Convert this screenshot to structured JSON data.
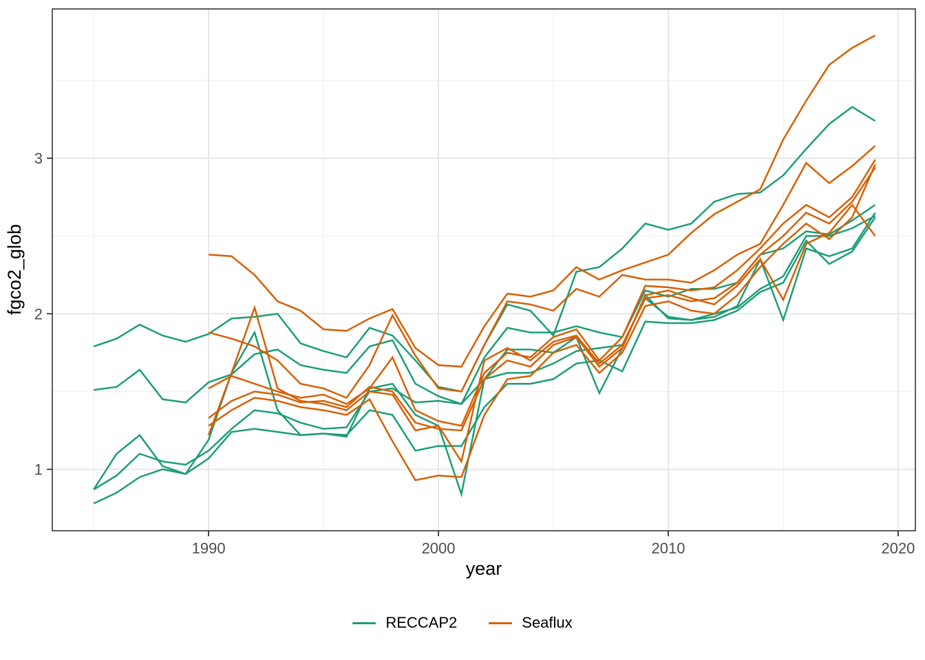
{
  "chart_data": {
    "type": "line",
    "title": "",
    "xlabel": "year",
    "ylabel": "fgco2_glob",
    "legend_position": "bottom",
    "legend_labels": {
      "reccap2": "RECCAP2",
      "seaflux": "Seaflux"
    },
    "colors": {
      "RECCAP2": "#1B9E77",
      "Seaflux": "#D95F02"
    },
    "xlim": [
      1983.2,
      2020.75
    ],
    "ylim": [
      0.605,
      3.96
    ],
    "x_ticks": {
      "values": [
        1990,
        2000,
        2010,
        2020
      ],
      "labels": [
        "1990",
        "2000",
        "2010",
        "2020"
      ]
    },
    "y_ticks": {
      "values": [
        1,
        2,
        3
      ],
      "labels": [
        "1",
        "2",
        "3"
      ]
    },
    "x_minor": [
      1985,
      1995,
      2005,
      2015
    ],
    "y_minor": [
      1.5,
      2.5,
      3.5
    ],
    "grid": true,
    "x": [
      1985,
      1986,
      1987,
      1988,
      1989,
      1990,
      1991,
      1992,
      1993,
      1994,
      1995,
      1996,
      1997,
      1998,
      1999,
      2000,
      2001,
      2002,
      2003,
      2004,
      2005,
      2006,
      2007,
      2008,
      2009,
      2010,
      2011,
      2012,
      2013,
      2014,
      2015,
      2016,
      2017,
      2018,
      2019
    ],
    "series": [
      {
        "id": "reccap2_1",
        "group": "RECCAP2",
        "values": [
          1.79,
          1.84,
          1.93,
          1.86,
          1.82,
          1.87,
          1.97,
          1.98,
          2.0,
          1.81,
          1.76,
          1.72,
          1.91,
          1.86,
          1.7,
          1.53,
          1.5,
          1.8,
          2.06,
          2.02,
          1.86,
          2.27,
          2.3,
          2.42,
          2.58,
          2.54,
          2.58,
          2.72,
          2.77,
          2.78,
          2.89,
          3.06,
          3.22,
          3.33,
          3.24
        ]
      },
      {
        "id": "reccap2_2",
        "group": "RECCAP2",
        "values": [
          1.51,
          1.53,
          1.64,
          1.45,
          1.43,
          1.56,
          1.61,
          1.74,
          1.77,
          1.67,
          1.64,
          1.62,
          1.79,
          1.83,
          1.55,
          1.47,
          1.42,
          1.72,
          1.91,
          1.88,
          1.88,
          1.92,
          1.88,
          1.85,
          2.15,
          2.11,
          2.16,
          2.16,
          2.2,
          2.38,
          2.42,
          2.53,
          2.51,
          2.6,
          2.7
        ]
      },
      {
        "id": "reccap2_3",
        "group": "RECCAP2",
        "values": [
          0.87,
          1.1,
          1.22,
          1.02,
          0.97,
          1.19,
          1.62,
          1.88,
          1.38,
          1.22,
          1.23,
          1.21,
          1.52,
          1.55,
          1.35,
          1.28,
          0.84,
          1.58,
          1.77,
          1.77,
          1.75,
          1.85,
          1.49,
          1.78,
          2.12,
          1.97,
          1.96,
          1.98,
          2.05,
          2.35,
          1.96,
          2.42,
          2.37,
          2.42,
          2.65
        ]
      },
      {
        "id": "reccap2_4",
        "group": "RECCAP2",
        "values": [
          0.87,
          0.96,
          1.1,
          1.05,
          1.03,
          1.12,
          1.26,
          1.38,
          1.36,
          1.3,
          1.26,
          1.27,
          1.5,
          1.52,
          1.43,
          1.44,
          1.42,
          1.58,
          1.62,
          1.62,
          1.68,
          1.76,
          1.78,
          1.8,
          2.1,
          1.98,
          1.96,
          2.0,
          2.04,
          2.16,
          2.24,
          2.5,
          2.5,
          2.55,
          2.63
        ]
      },
      {
        "id": "reccap2_5",
        "group": "RECCAP2",
        "values": [
          0.78,
          0.85,
          0.95,
          1.0,
          0.97,
          1.07,
          1.24,
          1.26,
          1.24,
          1.22,
          1.23,
          1.22,
          1.38,
          1.35,
          1.12,
          1.15,
          1.15,
          1.4,
          1.55,
          1.55,
          1.58,
          1.68,
          1.7,
          1.63,
          1.95,
          1.94,
          1.94,
          1.96,
          2.02,
          2.14,
          2.2,
          2.47,
          2.32,
          2.4,
          2.62
        ]
      },
      {
        "id": "seaflux_1",
        "group": "Seaflux",
        "values": [
          null,
          null,
          null,
          null,
          null,
          2.38,
          2.37,
          2.25,
          2.08,
          2.02,
          1.9,
          1.89,
          1.97,
          2.03,
          1.78,
          1.67,
          1.66,
          1.92,
          2.13,
          2.11,
          2.15,
          2.3,
          2.22,
          2.28,
          2.33,
          2.38,
          2.52,
          2.64,
          2.72,
          2.8,
          3.12,
          3.37,
          3.6,
          3.71,
          3.79
        ]
      },
      {
        "id": "seaflux_2",
        "group": "Seaflux",
        "values": [
          null,
          null,
          null,
          null,
          null,
          1.88,
          1.84,
          1.79,
          1.7,
          1.55,
          1.52,
          1.46,
          1.67,
          1.99,
          1.73,
          1.52,
          1.5,
          1.8,
          2.08,
          2.06,
          2.02,
          2.16,
          2.11,
          2.25,
          2.22,
          2.22,
          2.2,
          2.28,
          2.38,
          2.45,
          2.7,
          2.97,
          2.84,
          2.95,
          3.08
        ]
      },
      {
        "id": "seaflux_3",
        "group": "Seaflux",
        "values": [
          null,
          null,
          null,
          null,
          null,
          1.52,
          1.6,
          1.55,
          1.5,
          1.46,
          1.48,
          1.42,
          1.52,
          1.72,
          1.38,
          1.31,
          1.28,
          1.62,
          1.75,
          1.72,
          1.85,
          1.9,
          1.7,
          1.85,
          2.18,
          2.17,
          2.15,
          2.17,
          2.28,
          2.42,
          2.58,
          2.7,
          2.62,
          2.75,
          2.99
        ]
      },
      {
        "id": "seaflux_4",
        "group": "Seaflux",
        "values": [
          null,
          null,
          null,
          null,
          null,
          1.33,
          1.44,
          1.5,
          1.48,
          1.43,
          1.44,
          1.4,
          1.53,
          1.5,
          1.3,
          1.26,
          1.25,
          1.58,
          1.7,
          1.66,
          1.8,
          1.85,
          1.66,
          1.78,
          2.12,
          2.15,
          2.1,
          2.06,
          2.18,
          2.35,
          2.09,
          2.45,
          2.52,
          2.7,
          2.5
        ]
      },
      {
        "id": "seaflux_5",
        "group": "Seaflux",
        "values": [
          null,
          null,
          null,
          null,
          null,
          1.28,
          1.38,
          1.46,
          1.44,
          1.4,
          1.38,
          1.35,
          1.45,
          1.18,
          0.93,
          0.96,
          0.95,
          1.35,
          1.58,
          1.6,
          1.75,
          1.8,
          1.62,
          1.75,
          2.05,
          2.08,
          2.02,
          2.0,
          2.12,
          2.3,
          2.45,
          2.58,
          2.48,
          2.62,
          2.96
        ]
      },
      {
        "id": "seaflux_6",
        "group": "Seaflux",
        "values": [
          null,
          null,
          null,
          null,
          null,
          1.22,
          1.62,
          2.04,
          1.52,
          1.44,
          1.42,
          1.38,
          1.5,
          1.48,
          1.25,
          1.28,
          1.05,
          1.7,
          1.78,
          1.7,
          1.82,
          1.86,
          1.68,
          1.8,
          2.1,
          2.12,
          2.08,
          2.1,
          2.2,
          2.38,
          2.5,
          2.65,
          2.58,
          2.72,
          2.94
        ]
      }
    ]
  }
}
